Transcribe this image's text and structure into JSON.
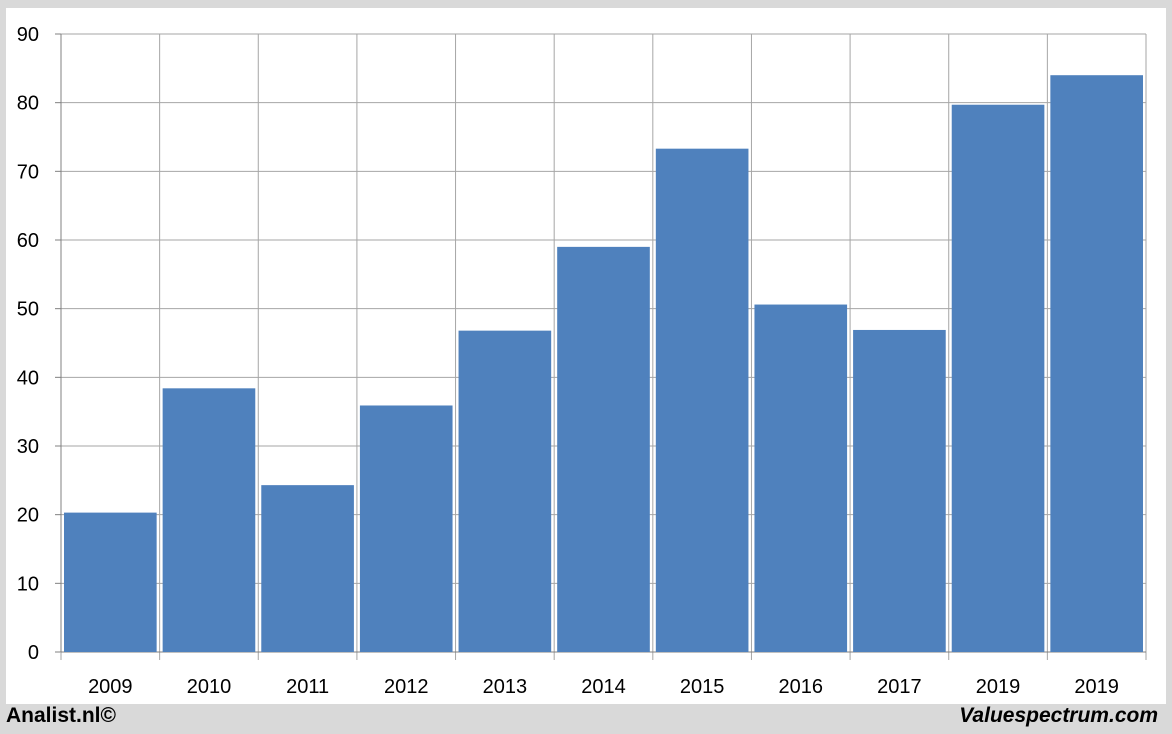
{
  "chart_data": {
    "type": "bar",
    "title": "",
    "xlabel": "",
    "ylabel": "",
    "categories": [
      "2009",
      "2010",
      "2011",
      "2012",
      "2013",
      "2014",
      "2015",
      "2016",
      "2017",
      "2019",
      "2019"
    ],
    "values": [
      20.3,
      38.4,
      24.3,
      35.9,
      46.8,
      59.0,
      73.3,
      50.6,
      46.9,
      79.7,
      84.0
    ],
    "ylim": [
      0,
      90
    ],
    "yticks": [
      "0",
      "10",
      "20",
      "30",
      "40",
      "50",
      "60",
      "70",
      "80",
      "90"
    ],
    "grid": true,
    "bar_color": "#4f81bd",
    "grid_color": "#a6a6a6"
  },
  "footer": {
    "left": "Analist.nl©",
    "right": "Valuespectrum.com"
  }
}
